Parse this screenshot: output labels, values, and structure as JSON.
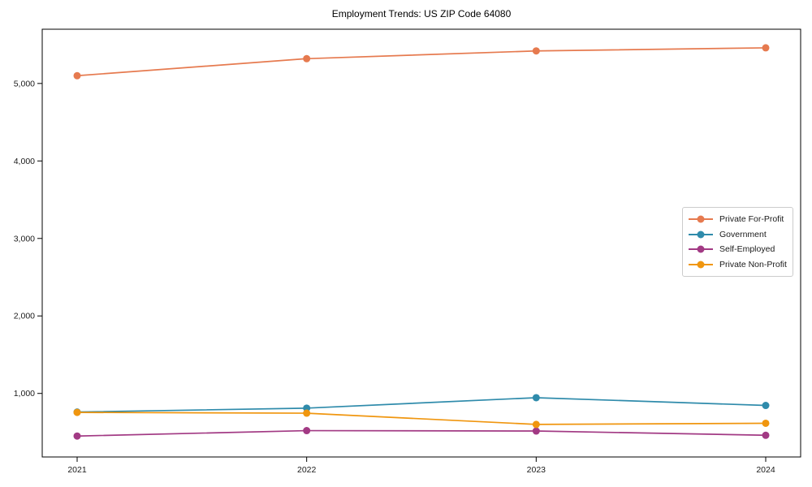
{
  "chart_data": {
    "type": "line",
    "title": "Employment Trends: US ZIP Code 64080",
    "categories": [
      "2021",
      "2022",
      "2023",
      "2024"
    ],
    "series": [
      {
        "name": "Private For-Profit",
        "color": "#e67a4f",
        "values": [
          5100,
          5320,
          5420,
          5460
        ]
      },
      {
        "name": "Government",
        "color": "#2f8bab",
        "values": [
          760,
          810,
          945,
          845
        ]
      },
      {
        "name": "Self-Employed",
        "color": "#a23a84",
        "values": [
          450,
          520,
          515,
          460
        ]
      },
      {
        "name": "Private Non-Profit",
        "color": "#f0960f",
        "values": [
          755,
          745,
          600,
          615
        ]
      }
    ],
    "xlabel": "",
    "ylabel": "",
    "ylim": [
      180,
      5700
    ],
    "yticks": [
      1000,
      2000,
      3000,
      4000,
      5000
    ],
    "ytick_labels": [
      "1,000",
      "2,000",
      "3,000",
      "4,000",
      "5,000"
    ],
    "grid": false,
    "legend_position": "center right",
    "marker": "circle"
  }
}
